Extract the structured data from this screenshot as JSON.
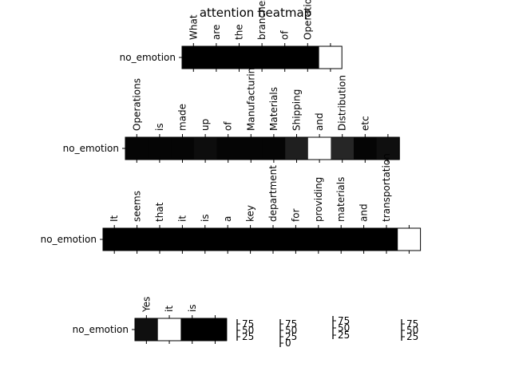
{
  "chart_data": {
    "type": "heatmap",
    "title": "attention heatmap",
    "row_label": "no_emotion",
    "panels": [
      {
        "tokens": [
          "What",
          "are",
          "the",
          "branches",
          "of",
          "Operations",
          ""
        ],
        "values": [
          0,
          0,
          0,
          0,
          0,
          0,
          100
        ]
      },
      {
        "tokens": [
          "Operations",
          "is",
          "made",
          "up",
          "of",
          "Manufacturing",
          "Materials",
          "Shipping",
          "and",
          "Distribution",
          "etc",
          ""
        ],
        "values": [
          2,
          2,
          2,
          5,
          2,
          2,
          2,
          12,
          100,
          15,
          2,
          6
        ]
      },
      {
        "tokens": [
          "It",
          "seems",
          "that",
          "it",
          "is",
          "a",
          "key",
          "department",
          "for",
          "providing",
          "materials",
          "and",
          "transportation",
          ""
        ],
        "values": [
          0,
          0,
          0,
          0,
          0,
          0,
          0,
          0,
          0,
          0,
          0,
          0,
          0,
          100
        ]
      },
      {
        "tokens": [
          "Yes",
          "it",
          "is",
          ""
        ],
        "values": [
          6,
          100,
          0,
          0
        ]
      }
    ],
    "colorbars": [
      {
        "ticks": [
          "75",
          "50",
          "25"
        ]
      },
      {
        "ticks": [
          "75",
          "50",
          "25",
          "0"
        ]
      },
      {
        "ticks": [
          "75",
          "50",
          "25"
        ]
      },
      {
        "ticks": [
          "75",
          "50",
          "25"
        ]
      }
    ],
    "colormap": "greys-reversed",
    "colors": {
      "low": "#000000",
      "high": "#ffffff",
      "axis": "#000000"
    }
  }
}
